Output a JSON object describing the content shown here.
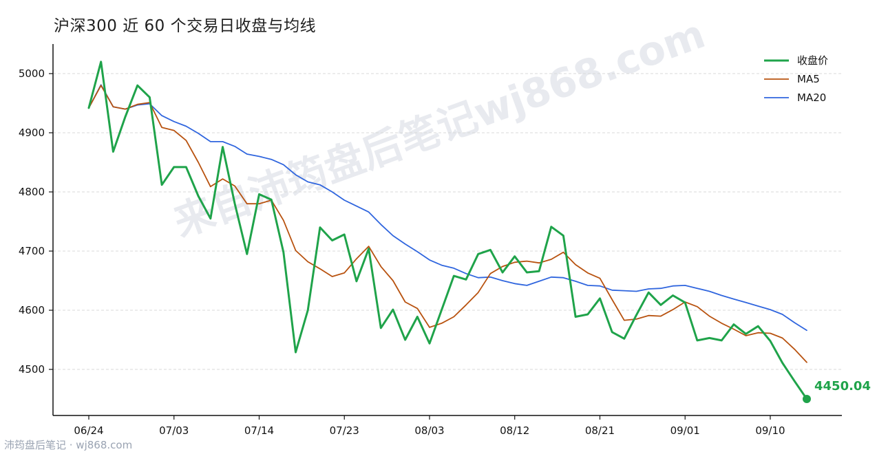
{
  "title": "沪深300 近 60 个交易日收盘与均线",
  "watermark": "来自沛筠盘后笔记wj868.com",
  "footer": "沛筠盘后笔记 · wj868.com",
  "colors": {
    "close": "#1fa34a",
    "ma5": "#b8520f",
    "ma20": "#2f65de",
    "grid": "#d9d9d9",
    "axis": "#111111",
    "watermark": "#c9ced8",
    "footer": "#9aa3b2"
  },
  "chart_data": {
    "type": "line",
    "title": "沪深300 近 60 个交易日收盘与均线",
    "xlabel": "",
    "ylabel": "",
    "ylim": [
      4450,
      5000
    ],
    "yticks": [
      4500,
      4600,
      4700,
      4800,
      4900,
      5000
    ],
    "xtick_labels": [
      "06/24",
      "07/03",
      "07/14",
      "07/23",
      "08/03",
      "08/12",
      "08/21",
      "09/01",
      "09/10"
    ],
    "xtick_index": [
      0,
      7,
      14,
      21,
      28,
      35,
      42,
      49,
      56
    ],
    "grid": "horizontal dashed",
    "legend_position": "top-right",
    "last_label": "4450.04",
    "series": [
      {
        "name": "收盘价",
        "values": [
          4942,
          5020,
          4868,
          4927,
          4980,
          4960,
          4812,
          4842,
          4842,
          4793,
          4755,
          4876,
          4780,
          4695,
          4796,
          4787,
          4698,
          4529,
          4600,
          4740,
          4718,
          4728,
          4649,
          4704,
          4570,
          4601,
          4550,
          4589,
          4544,
          4601,
          4658,
          4652,
          4695,
          4702,
          4664,
          4691,
          4664,
          4666,
          4741,
          4726,
          4589,
          4593,
          4620,
          4563,
          4552,
          4592,
          4630,
          4609,
          4625,
          4613,
          4549,
          4553,
          4549,
          4576,
          4560,
          4573,
          4548,
          4511,
          4480,
          4450.04
        ]
      },
      {
        "name": "MA5",
        "values": [
          4942,
          4980,
          4944,
          4940,
          4948,
          4951,
          4909,
          4904,
          4887,
          4850,
          4809,
          4822,
          4810,
          4780,
          4780,
          4786,
          4752,
          4701,
          4682,
          4670,
          4657,
          4663,
          4687,
          4708,
          4674,
          4650,
          4614,
          4603,
          4571,
          4578,
          4589,
          4609,
          4630,
          4662,
          4674,
          4681,
          4683,
          4680,
          4686,
          4698,
          4677,
          4663,
          4654,
          4618,
          4583,
          4585,
          4591,
          4590,
          4601,
          4614,
          4606,
          4590,
          4578,
          4568,
          4557,
          4562,
          4561,
          4553,
          4534,
          4512
        ]
      },
      {
        "name": "MA20",
        "values": [
          4942,
          4981,
          4944,
          4940,
          4947,
          4949,
          4929,
          4919,
          4911,
          4899,
          4885,
          4885,
          4877,
          4864,
          4860,
          4855,
          4846,
          4829,
          4817,
          4812,
          4800,
          4786,
          4776,
          4766,
          4745,
          4726,
          4712,
          4699,
          4685,
          4676,
          4671,
          4662,
          4655,
          4656,
          4650,
          4645,
          4642,
          4649,
          4656,
          4655,
          4649,
          4642,
          4641,
          4634,
          4633,
          4632,
          4636,
          4637,
          4641,
          4642,
          4637,
          4632,
          4625,
          4619,
          4613,
          4607,
          4601,
          4593,
          4579,
          4566
        ]
      }
    ]
  }
}
